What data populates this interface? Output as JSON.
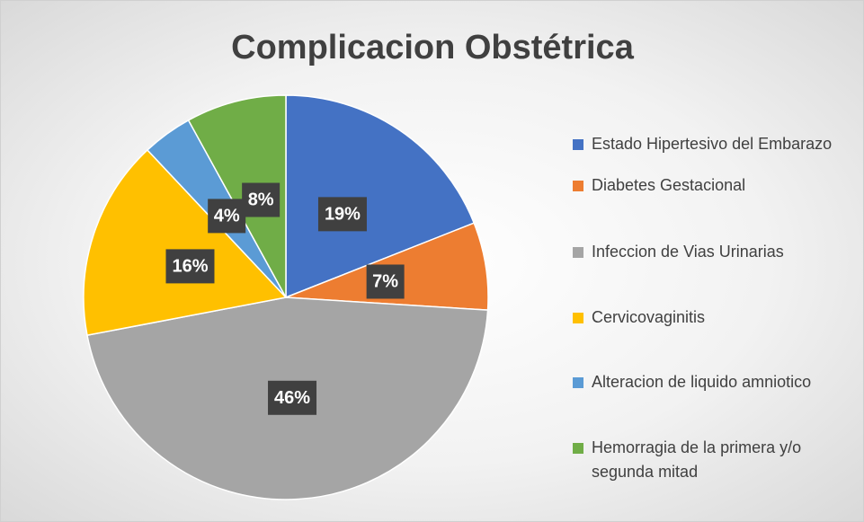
{
  "chart_data": {
    "type": "pie",
    "title": "Complicacion Obstétrica",
    "categories": [
      "Estado Hipertesivo del Embarazo",
      "Diabetes Gestacional",
      "Infeccion de Vias Urinarias",
      "Cervicovaginitis",
      "Alteracion de liquido amniotico",
      "Hemorragia de la primera y/o segunda mitad"
    ],
    "values": [
      19,
      7,
      46,
      16,
      4,
      8
    ],
    "value_labels": [
      "19%",
      "7%",
      "46%",
      "16%",
      "4%",
      "8%"
    ],
    "colors": [
      "#4472c4",
      "#ed7d31",
      "#a5a5a5",
      "#ffc000",
      "#5b9bd5",
      "#70ad47"
    ],
    "legend": "right"
  }
}
